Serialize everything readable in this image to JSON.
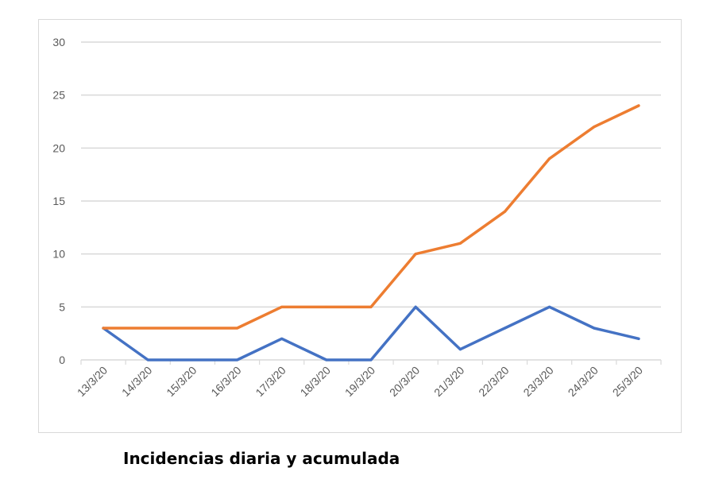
{
  "chart_data": {
    "type": "line",
    "title": "Incidencias diaria y acumulada",
    "xlabel": "",
    "ylabel": "",
    "categories": [
      "13/3/20",
      "14/3/20",
      "15/3/20",
      "16/3/20",
      "17/3/20",
      "18/3/20",
      "19/3/20",
      "20/3/20",
      "21/3/20",
      "22/3/20",
      "23/3/20",
      "24/3/20",
      "25/3/20"
    ],
    "ylim": [
      0,
      30
    ],
    "yticks": [
      0,
      5,
      10,
      15,
      20,
      25,
      30
    ],
    "grid": true,
    "legend": "none",
    "series": [
      {
        "id": "diaria",
        "color": "#4472c4",
        "values": [
          3,
          0,
          0,
          0,
          2,
          0,
          0,
          5,
          1,
          3,
          5,
          3,
          2
        ]
      },
      {
        "id": "acumulada",
        "color": "#ed7d31",
        "values": [
          3,
          3,
          3,
          3,
          5,
          5,
          5,
          10,
          11,
          14,
          19,
          22,
          24
        ]
      }
    ]
  }
}
